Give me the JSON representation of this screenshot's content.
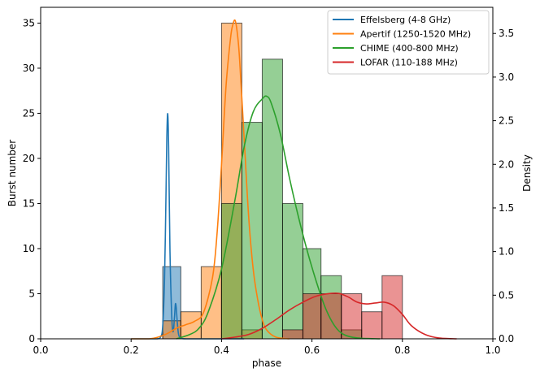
{
  "chart_data": {
    "type": "bar",
    "xlabel": "phase",
    "ylabel_left": "Burst number",
    "ylabel_right": "Density",
    "xlim": [
      0.0,
      1.0
    ],
    "ylim_left": [
      0,
      36.75
    ],
    "ylim_right": [
      0,
      3.8
    ],
    "x_ticks": [
      "0.0",
      "0.2",
      "0.4",
      "0.6",
      "0.8",
      "1.0"
    ],
    "y_ticks_left": [
      "0",
      "5",
      "10",
      "15",
      "20",
      "25",
      "30",
      "35"
    ],
    "y_ticks_right": [
      "0.0",
      "0.5",
      "1.0",
      "1.5",
      "2.0",
      "2.5",
      "3.0",
      "3.5"
    ],
    "bin_edges": [
      0.27,
      0.31,
      0.355,
      0.4,
      0.445,
      0.49,
      0.535,
      0.58,
      0.62,
      0.665,
      0.71,
      0.755,
      0.8
    ],
    "legend_position": "top-right",
    "series": [
      {
        "name": "Effelsberg (4-8 GHz)",
        "color": "#1f77b4",
        "hist": [
          {
            "x0": 0.27,
            "x1": 0.31,
            "count": 8
          }
        ],
        "kde_x": [
          0.2,
          0.255,
          0.265,
          0.27,
          0.274,
          0.277,
          0.279,
          0.281,
          0.283,
          0.286,
          0.29,
          0.293,
          0.296,
          0.298,
          0.3,
          0.302,
          0.305,
          0.31,
          0.32,
          0.35,
          0.45
        ],
        "kde_density": [
          0.0,
          0.0,
          0.02,
          0.15,
          0.7,
          1.6,
          2.3,
          2.58,
          2.2,
          1.0,
          0.25,
          0.08,
          0.25,
          0.4,
          0.35,
          0.2,
          0.05,
          0.01,
          0.0,
          0.0,
          0.0
        ]
      },
      {
        "name": "Apertif (1250-1520 MHz)",
        "color": "#ff7f0e",
        "hist": [
          {
            "x0": 0.27,
            "x1": 0.31,
            "count": 2
          },
          {
            "x0": 0.31,
            "x1": 0.355,
            "count": 3
          },
          {
            "x0": 0.355,
            "x1": 0.4,
            "count": 8
          },
          {
            "x0": 0.4,
            "x1": 0.445,
            "count": 35
          },
          {
            "x0": 0.445,
            "x1": 0.49,
            "count": 1
          }
        ],
        "kde_x": [
          0.2,
          0.24,
          0.26,
          0.28,
          0.3,
          0.32,
          0.34,
          0.36,
          0.38,
          0.39,
          0.4,
          0.41,
          0.42,
          0.425,
          0.43,
          0.435,
          0.44,
          0.45,
          0.46,
          0.47,
          0.48,
          0.49,
          0.5,
          0.52,
          0.55
        ],
        "kde_density": [
          0.0,
          0.0,
          0.02,
          0.06,
          0.12,
          0.16,
          0.2,
          0.3,
          0.7,
          1.2,
          2.0,
          2.9,
          3.45,
          3.6,
          3.65,
          3.5,
          3.2,
          2.3,
          1.4,
          0.8,
          0.45,
          0.22,
          0.1,
          0.02,
          0.0
        ]
      },
      {
        "name": "CHIME (400-800 MHz)",
        "color": "#2ca02c",
        "hist": [
          {
            "x0": 0.4,
            "x1": 0.445,
            "count": 15
          },
          {
            "x0": 0.445,
            "x1": 0.49,
            "count": 24
          },
          {
            "x0": 0.49,
            "x1": 0.535,
            "count": 31
          },
          {
            "x0": 0.535,
            "x1": 0.58,
            "count": 15
          },
          {
            "x0": 0.58,
            "x1": 0.62,
            "count": 10
          },
          {
            "x0": 0.62,
            "x1": 0.665,
            "count": 7
          },
          {
            "x0": 0.665,
            "x1": 0.71,
            "count": 1
          }
        ],
        "kde_x": [
          0.3,
          0.33,
          0.35,
          0.37,
          0.4,
          0.43,
          0.45,
          0.47,
          0.49,
          0.5,
          0.51,
          0.53,
          0.55,
          0.57,
          0.59,
          0.61,
          0.63,
          0.65,
          0.67,
          0.7,
          0.75
        ],
        "kde_density": [
          0.0,
          0.05,
          0.12,
          0.3,
          0.8,
          1.6,
          2.2,
          2.6,
          2.75,
          2.78,
          2.7,
          2.35,
          1.85,
          1.4,
          1.0,
          0.65,
          0.35,
          0.15,
          0.05,
          0.01,
          0.0
        ],
        "hist_alpha": 0.5
      },
      {
        "name": "LOFAR (110-188 MHz)",
        "color": "#d62728",
        "hist": [
          {
            "x0": 0.535,
            "x1": 0.58,
            "count": 1
          },
          {
            "x0": 0.58,
            "x1": 0.62,
            "count": 5
          },
          {
            "x0": 0.62,
            "x1": 0.665,
            "count": 5
          },
          {
            "x0": 0.665,
            "x1": 0.71,
            "count": 5
          },
          {
            "x0": 0.71,
            "x1": 0.755,
            "count": 3
          },
          {
            "x0": 0.755,
            "x1": 0.8,
            "count": 7
          }
        ],
        "kde_x": [
          0.4,
          0.43,
          0.46,
          0.49,
          0.52,
          0.55,
          0.58,
          0.61,
          0.64,
          0.66,
          0.68,
          0.7,
          0.72,
          0.74,
          0.76,
          0.78,
          0.8,
          0.82,
          0.85,
          0.88,
          0.92
        ],
        "kde_density": [
          0.0,
          0.02,
          0.05,
          0.12,
          0.22,
          0.33,
          0.42,
          0.49,
          0.52,
          0.52,
          0.48,
          0.42,
          0.4,
          0.41,
          0.42,
          0.38,
          0.28,
          0.15,
          0.05,
          0.01,
          0.0
        ]
      }
    ]
  }
}
